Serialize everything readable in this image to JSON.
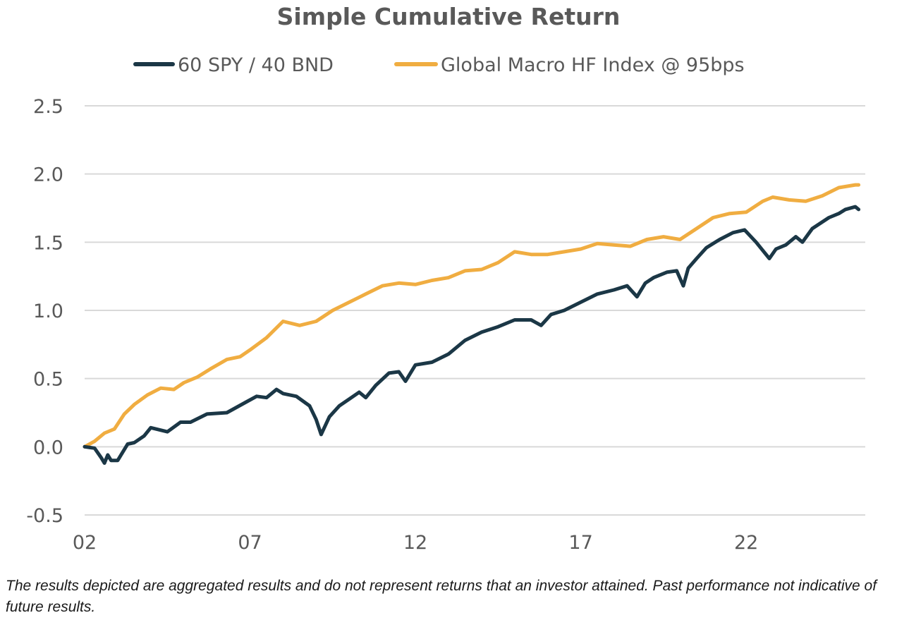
{
  "chart_data": {
    "type": "line",
    "title": "Simple Cumulative Return",
    "xlabel": "",
    "ylabel": "",
    "xlim": [
      2002,
      2025.6
    ],
    "ylim": [
      -0.5,
      2.5
    ],
    "yticks": [
      -0.5,
      0.0,
      0.5,
      1.0,
      1.5,
      2.0,
      2.5
    ],
    "ytick_labels": [
      "-0.5",
      "0.0",
      "0.5",
      "1.0",
      "1.5",
      "2.0",
      "2.5"
    ],
    "xticks": [
      2002,
      2007,
      2012,
      2017,
      2022
    ],
    "xtick_labels": [
      "02",
      "07",
      "12",
      "17",
      "22"
    ],
    "grid": true,
    "legend_position": "top",
    "series": [
      {
        "name": "60 SPY / 40 BND",
        "color": "#1b3746",
        "x": [
          2002.0,
          2002.3,
          2002.5,
          2002.6,
          2002.7,
          2002.8,
          2003.0,
          2003.3,
          2003.5,
          2003.8,
          2004.0,
          2004.5,
          2004.9,
          2005.2,
          2005.7,
          2006.3,
          2006.9,
          2007.2,
          2007.5,
          2007.8,
          2008.0,
          2008.4,
          2008.8,
          2009.0,
          2009.15,
          2009.4,
          2009.7,
          2010.0,
          2010.3,
          2010.5,
          2010.8,
          2011.2,
          2011.5,
          2011.7,
          2012.0,
          2012.5,
          2013.0,
          2013.5,
          2014.0,
          2014.5,
          2015.0,
          2015.5,
          2015.8,
          2016.1,
          2016.5,
          2017.0,
          2017.5,
          2018.0,
          2018.4,
          2018.7,
          2018.95,
          2019.2,
          2019.6,
          2019.9,
          2020.1,
          2020.25,
          2020.5,
          2020.8,
          2021.2,
          2021.6,
          2021.95,
          2022.3,
          2022.5,
          2022.7,
          2022.9,
          2023.2,
          2023.5,
          2023.7,
          2024.0,
          2024.5,
          2024.8,
          2025.0,
          2025.3,
          2025.4
        ],
        "values": [
          0.0,
          -0.01,
          -0.08,
          -0.12,
          -0.06,
          -0.1,
          -0.1,
          0.02,
          0.03,
          0.08,
          0.14,
          0.11,
          0.18,
          0.18,
          0.24,
          0.25,
          0.33,
          0.37,
          0.36,
          0.42,
          0.39,
          0.37,
          0.3,
          0.2,
          0.09,
          0.22,
          0.3,
          0.35,
          0.4,
          0.36,
          0.45,
          0.54,
          0.55,
          0.48,
          0.6,
          0.62,
          0.68,
          0.78,
          0.84,
          0.88,
          0.93,
          0.93,
          0.89,
          0.97,
          1.0,
          1.06,
          1.12,
          1.15,
          1.18,
          1.1,
          1.2,
          1.24,
          1.28,
          1.29,
          1.18,
          1.31,
          1.38,
          1.46,
          1.52,
          1.57,
          1.59,
          1.5,
          1.44,
          1.38,
          1.45,
          1.48,
          1.54,
          1.5,
          1.6,
          1.68,
          1.71,
          1.74,
          1.76,
          1.74
        ]
      },
      {
        "name": "Global Macro HF Index @ 95bps",
        "color": "#f0ad41",
        "x": [
          2002.0,
          2002.3,
          2002.6,
          2002.9,
          2003.2,
          2003.5,
          2003.9,
          2004.3,
          2004.7,
          2005.0,
          2005.4,
          2005.8,
          2006.3,
          2006.7,
          2007.0,
          2007.5,
          2008.0,
          2008.5,
          2009.0,
          2009.5,
          2010.0,
          2010.5,
          2011.0,
          2011.5,
          2012.0,
          2012.5,
          2013.0,
          2013.5,
          2014.0,
          2014.5,
          2015.0,
          2015.5,
          2016.0,
          2016.5,
          2017.0,
          2017.5,
          2018.0,
          2018.5,
          2019.0,
          2019.5,
          2020.0,
          2020.5,
          2021.0,
          2021.5,
          2022.0,
          2022.5,
          2022.8,
          2023.3,
          2023.8,
          2024.3,
          2024.8,
          2025.3,
          2025.4
        ],
        "values": [
          0.0,
          0.04,
          0.1,
          0.13,
          0.24,
          0.31,
          0.38,
          0.43,
          0.42,
          0.47,
          0.51,
          0.57,
          0.64,
          0.66,
          0.71,
          0.8,
          0.92,
          0.89,
          0.92,
          1.0,
          1.06,
          1.12,
          1.18,
          1.2,
          1.19,
          1.22,
          1.24,
          1.29,
          1.3,
          1.35,
          1.43,
          1.41,
          1.41,
          1.43,
          1.45,
          1.49,
          1.48,
          1.47,
          1.52,
          1.54,
          1.52,
          1.6,
          1.68,
          1.71,
          1.72,
          1.8,
          1.83,
          1.81,
          1.8,
          1.84,
          1.9,
          1.92,
          1.92
        ]
      }
    ]
  },
  "disclaimer": "The results depicted are aggregated results and do not represent returns that an investor attained. Past performance not indicative of future results."
}
